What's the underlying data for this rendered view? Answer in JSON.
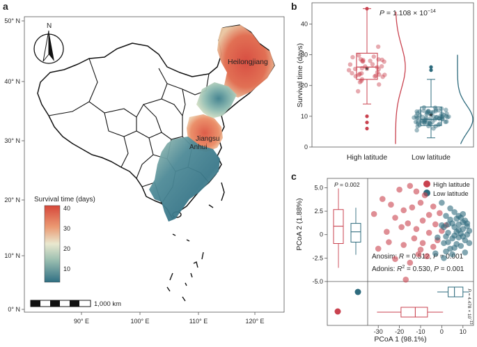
{
  "panels": {
    "a": "a",
    "b": "b",
    "c": "c"
  },
  "map": {
    "lat_ticks": [
      "50° N",
      "40° N",
      "30° N",
      "20° N",
      "10° N",
      "0° N"
    ],
    "lon_ticks": [
      "90° E",
      "100° E",
      "110° E",
      "120° E"
    ],
    "compass": "N",
    "scale_bar": "1,000 km",
    "places": [
      "Heilongjiang",
      "Jiangsu",
      "Anhui"
    ],
    "legend": {
      "title": "Survival time (days)",
      "ticks": [
        "40",
        "30",
        "20",
        "10"
      ],
      "range": [
        3,
        41
      ]
    },
    "colors": {
      "low": "#2f6f83",
      "mid": "#e9e8cf",
      "high": "#d6473a"
    }
  },
  "chart_data": [
    {
      "type": "box+scatter",
      "panel": "b",
      "title": "P = 1.108 × 10^-14",
      "ylabel": "Survival time (days)",
      "ylim": [
        0,
        46
      ],
      "yticks": [
        0,
        10,
        20,
        30,
        40
      ],
      "categories": [
        "High latitude",
        "Low latitude"
      ],
      "series": [
        {
          "name": "High latitude",
          "color": "#c9424f",
          "box": {
            "q1": 22,
            "median": 26,
            "q3": 30.5,
            "whisker_low": 14,
            "whisker_high": 45,
            "mean": 25
          },
          "outliers": [
            10,
            8,
            6,
            45
          ]
        },
        {
          "name": "Low latitude",
          "color": "#2e6b7d",
          "box": {
            "q1": 7,
            "median": 9,
            "q3": 13,
            "whisker_low": 3,
            "whisker_high": 22,
            "mean": 10
          },
          "outliers": [
            26,
            25
          ]
        }
      ]
    },
    {
      "type": "scatter",
      "panel": "c",
      "xlabel": "PCoA 1 (98.1%)",
      "ylabel": "PCoA 2 (1.88%)",
      "xlim": [
        -35,
        15
      ],
      "ylim": [
        -5,
        6
      ],
      "xticks": [
        -30,
        -20,
        -10,
        0,
        10
      ],
      "yticks": [
        "5.0",
        "2.5",
        "0",
        "-2.5",
        "-5.0"
      ],
      "legend": [
        "High latitude",
        "Low latitude"
      ],
      "stats": [
        "Anosim: R = 0.512, P = 0.001",
        "Adonis: R² = 0.530, P = 0.001"
      ],
      "left_box_p": "P = 0.002",
      "bottom_box_p": "P = 4.478 × 10^-13",
      "series": [
        {
          "name": "High latitude",
          "color": "#c9424f",
          "points": [
            [
              -32,
              2.2
            ],
            [
              -28,
              3.8
            ],
            [
              -24,
              3.2
            ],
            [
              -20,
              4.8
            ],
            [
              -18,
              2.6
            ],
            [
              -22,
              1.8
            ],
            [
              -15,
              5.2
            ],
            [
              -12,
              4.6
            ],
            [
              -14,
              2.9
            ],
            [
              -10,
              3.4
            ],
            [
              -8,
              4.2
            ],
            [
              -6,
              2.1
            ],
            [
              -4,
              3.0
            ],
            [
              -16,
              1.2
            ],
            [
              -12,
              0.6
            ],
            [
              -9,
              1.5
            ],
            [
              -6,
              0.2
            ],
            [
              -3,
              1.1
            ],
            [
              0,
              0.4
            ],
            [
              -2,
              -0.6
            ],
            [
              -30,
              -1.5
            ],
            [
              -25,
              -0.8
            ],
            [
              -18,
              -1.1
            ],
            [
              -13,
              -0.4
            ],
            [
              -10,
              -1.6
            ],
            [
              -7,
              -2.3
            ],
            [
              -22,
              -2.6
            ],
            [
              -15,
              -3.0
            ],
            [
              -11,
              -2.1
            ],
            [
              -9,
              -0.9
            ],
            [
              -4,
              -1.3
            ],
            [
              -1,
              2.3
            ],
            [
              2,
              1.0
            ],
            [
              -19,
              0.8
            ],
            [
              -26,
              0.3
            ],
            [
              -17,
              -4.8
            ]
          ]
        },
        {
          "name": "Low latitude",
          "color": "#2e6b7d",
          "points": [
            [
              0,
              3.4
            ],
            [
              2,
              2.0
            ],
            [
              4,
              1.6
            ],
            [
              6,
              2.4
            ],
            [
              8,
              1.1
            ],
            [
              10,
              0.6
            ],
            [
              12,
              0.0
            ],
            [
              11,
              -0.6
            ],
            [
              9,
              -1.2
            ],
            [
              7,
              -1.0
            ],
            [
              5,
              -0.4
            ],
            [
              3,
              0.2
            ],
            [
              1,
              -0.9
            ],
            [
              6,
              0.8
            ],
            [
              8,
              -0.3
            ],
            [
              10,
              1.3
            ],
            [
              12,
              0.9
            ],
            [
              9,
              0.1
            ],
            [
              7,
              1.7
            ],
            [
              4,
              -1.5
            ],
            [
              2,
              -1.8
            ],
            [
              5,
              -2.1
            ],
            [
              11,
              -1.9
            ],
            [
              13,
              -0.9
            ],
            [
              3,
              1.1
            ],
            [
              0,
              1.0
            ],
            [
              -2,
              -0.3
            ],
            [
              1,
              0.8
            ],
            [
              6,
              -1.4
            ],
            [
              8,
              2.0
            ],
            [
              13,
              0.4
            ],
            [
              10,
              -0.2
            ],
            [
              4,
              2.8
            ],
            [
              7,
              0.3
            ],
            [
              9,
              1.8
            ],
            [
              5,
              1.2
            ],
            [
              3,
              -0.8
            ],
            [
              11,
              1.5
            ],
            [
              2,
              -0.2
            ],
            [
              6,
              -0.1
            ],
            [
              8,
              0.5
            ],
            [
              12,
              1.2
            ],
            [
              10,
              2.2
            ],
            [
              -3,
              -2.0
            ],
            [
              1,
              -2.5
            ]
          ]
        }
      ]
    }
  ]
}
